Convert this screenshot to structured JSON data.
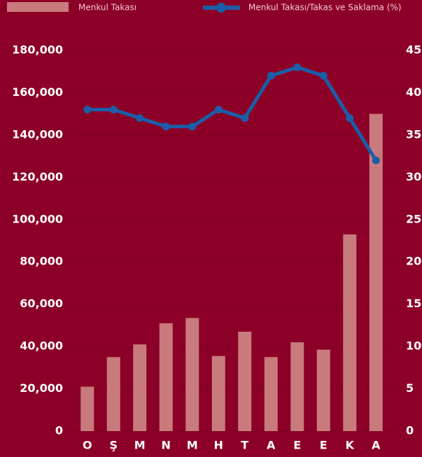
{
  "chart_data": {
    "type": "bar-line",
    "categories": [
      "O",
      "Ş",
      "M",
      "N",
      "M",
      "H",
      "T",
      "A",
      "E",
      "E",
      "K",
      "A"
    ],
    "series": [
      {
        "name": "Menkul Takası",
        "type": "bar",
        "color": "#c97a7c",
        "values": [
          21000,
          35000,
          41000,
          51000,
          53500,
          35500,
          47000,
          35000,
          42000,
          38500,
          93000,
          150000
        ]
      },
      {
        "name": "Menkul Takası/Takas ve Saklama (%)",
        "type": "line",
        "axis": "y2",
        "color": "#1a5ea8",
        "values": [
          38,
          38,
          37,
          36,
          36,
          38,
          37,
          42,
          43,
          42,
          37,
          32
        ]
      }
    ],
    "ylim": [
      0,
      180000
    ],
    "yticks": [
      0,
      {
        "value": 20000,
        "label": "20,000"
      },
      {
        "value": 40000,
        "label": "40,000"
      },
      {
        "value": 60000,
        "label": "60,000"
      },
      {
        "value": 80000,
        "label": "80,000"
      },
      {
        "value": 100000,
        "label": "100,000"
      },
      {
        "value": 120000,
        "label": "120,000"
      },
      {
        "value": 140000,
        "label": "140,000"
      },
      {
        "value": 160000,
        "label": "160,000"
      },
      {
        "value": 180000,
        "label": "180,000"
      }
    ],
    "y2lim": [
      0,
      45
    ],
    "y2ticks": [
      0,
      5,
      10,
      15,
      20,
      25,
      30,
      35,
      40,
      45
    ],
    "grid": true
  }
}
